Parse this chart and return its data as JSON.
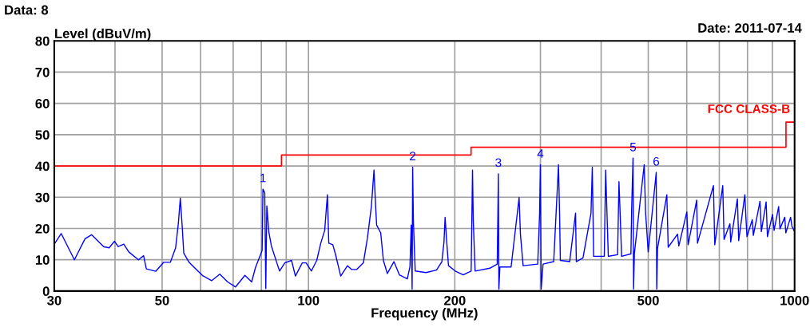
{
  "chart_data": {
    "type": "line",
    "xlabel": "Frequency (MHz)",
    "ylabel": "Level (dBuV/m)",
    "log": "x",
    "xlim": [
      30,
      1000
    ],
    "ylim": [
      0,
      80
    ],
    "xticks": [
      30,
      {
        "value": 40,
        "label": null
      },
      50,
      {
        "value": 60,
        "label": null
      },
      {
        "value": 70,
        "label": null
      },
      {
        "value": 80,
        "label": null
      },
      {
        "value": 90,
        "label": null
      },
      100,
      200,
      {
        "value": 300,
        "label": null
      },
      {
        "value": 400,
        "label": null
      },
      500,
      {
        "value": 600,
        "label": null
      },
      {
        "value": 700,
        "label": null
      },
      {
        "value": 800,
        "label": null
      },
      {
        "value": 900,
        "label": null
      },
      1000
    ],
    "yticks": [
      0,
      10,
      20,
      30,
      40,
      50,
      60,
      70,
      80
    ],
    "grid": true,
    "marker": "none",
    "line_style": "solid",
    "series": [
      {
        "color": "#0000ff",
        "x": [
          30,
          31.0,
          33.0,
          34.7,
          35.8,
          37.9,
          38.9,
          39.9,
          40.6,
          41.7,
          42.7,
          44.7,
          45.8,
          46.4,
          48.5,
          50.4,
          52.0,
          53.3,
          54.0,
          54.5,
          55.0,
          55.4,
          56.8,
          58.6,
          60.5,
          63.2,
          65.7,
          68.2,
          70.8,
          74.0,
          76.4,
          77.8,
          80.3,
          80.6,
          81.3,
          81.7,
          82.1,
          82.9,
          83.9,
          86.1,
          87.2,
          89.4,
          92.3,
          94.0,
          97.1,
          98.9,
          101.4,
          104.0,
          106.0,
          108.0,
          108.7,
          109.4,
          110.1,
          112.2,
          113.6,
          116.5,
          120.3,
          122.6,
          125.7,
          129.7,
          132.2,
          134.7,
          136.4,
          137.3,
          138.1,
          140.8,
          142.6,
          145.3,
          149.9,
          153.8,
          159.7,
          161.7,
          162.7,
          163.4,
          163.8,
          164.4,
          165.8,
          174.4,
          183.4,
          188.1,
          190.0,
          191.0,
          192.4,
          194.1,
          200.4,
          208.1,
          216.1,
          217.5,
          218.3,
          220.2,
          236.1,
          244.5,
          245.2,
          245.8,
          246.4,
          247.6,
          261.1,
          271.2,
          272.9,
          276.4,
          296.2,
          298.8,
          300.0,
          301.1,
          303.8,
          319.5,
          326.8,
          328.5,
          329.7,
          344.6,
          354.3,
          355.6,
          367.0,
          381.2,
          383.6,
          386.0,
          406.0,
          408.6,
          411.2,
          413.8,
          432.4,
          435.2,
          437.9,
          440.7,
          460.6,
          462.3,
          465.2,
          466.4,
          468.2,
          490.5,
          493.6,
          499.9,
          519.2,
          520.5,
          522.4,
          546.0,
          549.5,
          574.2,
          577.9,
          600.2,
          604.0,
          628.9,
          631.3,
          680.8,
          685.1,
          711.5,
          716.0,
          736.1,
          738.9,
          762.6,
          767.4,
          790.0,
          794.0,
          798.0,
          818.3,
          822.5,
          848.8,
          854.2,
          873.8,
          879.3,
          900.6,
          907.4,
          927.1,
          933.0,
          954.4,
          959.2,
          981.2,
          987.4,
          1000
        ],
        "values": [
          15,
          18.4,
          10,
          16.7,
          18,
          14.2,
          13.8,
          15.9,
          14.2,
          15,
          12.5,
          10,
          11.3,
          7.1,
          6.3,
          9.2,
          9.2,
          13.8,
          21.7,
          29.7,
          20.5,
          12.1,
          9.2,
          7.1,
          5,
          3.3,
          5.4,
          2.9,
          1.3,
          5,
          2.9,
          7.5,
          13,
          32.6,
          31.4,
          0.8,
          27.2,
          18.8,
          14.4,
          9,
          6.4,
          9,
          9.8,
          4.8,
          9,
          9,
          6.4,
          9.8,
          15.3,
          19.4,
          25.3,
          30.8,
          15.3,
          14.8,
          11.9,
          4.8,
          8.1,
          6.9,
          6.9,
          9,
          16.9,
          27,
          38.7,
          28.7,
          21.1,
          18.6,
          9.8,
          5.6,
          9.4,
          5.2,
          3.9,
          7.7,
          21.1,
          0.6,
          39.6,
          22,
          6.4,
          5.9,
          6.7,
          9.4,
          15.7,
          23.6,
          16.1,
          8.1,
          6.4,
          5.2,
          6.4,
          38.7,
          22.4,
          6.4,
          7.3,
          8.6,
          23.2,
          37.5,
          0.6,
          7.7,
          7.7,
          29.9,
          18.2,
          8.1,
          8.6,
          24.5,
          40.4,
          0.6,
          8.6,
          9.4,
          40.4,
          24.9,
          9.8,
          9.4,
          24.9,
          9.4,
          10.6,
          24.9,
          39.6,
          11.1,
          11.1,
          38.7,
          24.9,
          11.1,
          11.6,
          35,
          23.6,
          11.1,
          11.9,
          27,
          42.5,
          0.6,
          12,
          40.4,
          25.3,
          12.5,
          37.9,
          0.6,
          13.6,
          30.8,
          14,
          18.2,
          14.4,
          25.3,
          14.8,
          29.1,
          15.3,
          33.7,
          14.8,
          33.7,
          16.5,
          21.5,
          15.7,
          29.5,
          16.1,
          30.8,
          23.6,
          17.4,
          22.8,
          17.8,
          28.7,
          19,
          28.5,
          17.4,
          24.5,
          19.4,
          27,
          19.9,
          23.6,
          18.6,
          23.6,
          20.7,
          19
        ]
      },
      {
        "type": "step",
        "name": "FCC CLASS-B",
        "color": "#ff0000",
        "x": [
          30,
          88,
          216,
          960,
          1000
        ],
        "values": [
          40,
          43.5,
          46,
          54,
          54
        ]
      }
    ],
    "annotations": [
      "Data: 8",
      "Date: 2011-07-14",
      {
        "text": "1",
        "x": 80.6,
        "y": 32.6
      },
      {
        "text": "2",
        "x": 163.8,
        "y": 39.6
      },
      {
        "text": "3",
        "x": 245.8,
        "y": 37.5
      },
      {
        "text": "4",
        "x": 300.0,
        "y": 40.4
      },
      {
        "text": "5",
        "x": 465.2,
        "y": 42.5
      },
      {
        "text": "6",
        "x": 519.2,
        "y": 37.9
      }
    ]
  }
}
